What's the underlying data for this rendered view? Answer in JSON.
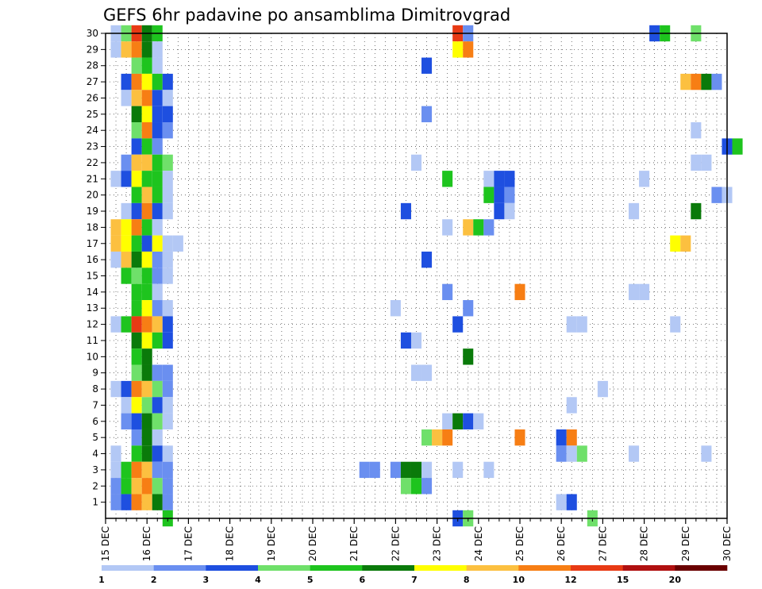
{
  "chart_data": {
    "type": "heatmap",
    "title": "GEFS 6hr padavine po ansamblima Dimitrovgrad",
    "xlabel": "",
    "ylabel": "",
    "x_tick_labels": [
      "15 DEC",
      "16 DEC",
      "17 DEC",
      "18 DEC",
      "19 DEC",
      "20 DEC",
      "21 DEC",
      "22 DEC",
      "23 DEC",
      "24 DEC",
      "25 DEC",
      "26 DEC",
      "27 DEC",
      "28 DEC",
      "29 DEC",
      "30 DEC"
    ],
    "x_range_days": [
      15,
      30
    ],
    "y_tick_labels": [
      "1",
      "2",
      "3",
      "4",
      "5",
      "6",
      "7",
      "8",
      "9",
      "10",
      "11",
      "12",
      "13",
      "14",
      "15",
      "16",
      "17",
      "18",
      "19",
      "20",
      "21",
      "22",
      "23",
      "24",
      "25",
      "26",
      "27",
      "28",
      "29",
      "30"
    ],
    "y_range": [
      0,
      30
    ],
    "grid": "dotted",
    "colorbar": {
      "labels": [
        "1",
        "2",
        "3",
        "4",
        "5",
        "6",
        "7",
        "8",
        "10",
        "12",
        "15",
        "20"
      ],
      "colors": [
        "#b3c8f5",
        "#6a8ff0",
        "#1e4fe0",
        "#6fe06a",
        "#1ec41e",
        "#0a7a0a",
        "#ffff00",
        "#fcc040",
        "#f77e14",
        "#e83a14",
        "#b01010",
        "#6a0000"
      ]
    },
    "cells": [
      [
        30,
        15.25,
        0
      ],
      [
        30,
        15.5,
        3
      ],
      [
        30,
        15.75,
        9
      ],
      [
        30,
        16.0,
        5
      ],
      [
        30,
        16.25,
        4
      ],
      [
        30,
        23.5,
        9
      ],
      [
        30,
        23.75,
        1
      ],
      [
        30,
        28.25,
        2
      ],
      [
        30,
        28.5,
        4
      ],
      [
        30,
        29.25,
        3
      ],
      [
        29,
        15.25,
        0
      ],
      [
        29,
        15.5,
        7
      ],
      [
        29,
        15.75,
        8
      ],
      [
        29,
        16.0,
        5
      ],
      [
        29,
        16.25,
        0
      ],
      [
        29,
        23.5,
        6
      ],
      [
        29,
        23.75,
        8
      ],
      [
        28,
        15.75,
        3
      ],
      [
        28,
        16.0,
        4
      ],
      [
        28,
        16.25,
        0
      ],
      [
        28,
        22.75,
        2
      ],
      [
        27,
        15.5,
        2
      ],
      [
        27,
        15.75,
        8
      ],
      [
        27,
        16.0,
        6
      ],
      [
        27,
        16.25,
        4
      ],
      [
        27,
        16.5,
        2
      ],
      [
        27,
        29.0,
        7
      ],
      [
        27,
        29.25,
        8
      ],
      [
        27,
        29.5,
        5
      ],
      [
        27,
        29.75,
        1
      ],
      [
        26,
        15.5,
        0
      ],
      [
        26,
        15.75,
        7
      ],
      [
        26,
        16.0,
        8
      ],
      [
        26,
        16.25,
        2
      ],
      [
        26,
        16.5,
        0
      ],
      [
        25,
        15.75,
        5
      ],
      [
        25,
        16.0,
        6
      ],
      [
        25,
        16.25,
        2
      ],
      [
        25,
        16.5,
        2
      ],
      [
        25,
        22.75,
        1
      ],
      [
        24,
        15.75,
        3
      ],
      [
        24,
        16.0,
        8
      ],
      [
        24,
        16.25,
        2
      ],
      [
        24,
        16.5,
        1
      ],
      [
        24,
        29.25,
        0
      ],
      [
        23,
        15.75,
        2
      ],
      [
        23,
        16.0,
        4
      ],
      [
        23,
        16.25,
        1
      ],
      [
        23,
        30.0,
        2
      ],
      [
        23,
        30.25,
        4
      ],
      [
        22,
        15.5,
        1
      ],
      [
        22,
        15.75,
        7
      ],
      [
        22,
        16.0,
        7
      ],
      [
        22,
        16.25,
        4
      ],
      [
        22,
        16.5,
        3
      ],
      [
        22,
        22.5,
        0
      ],
      [
        22,
        29.25,
        0
      ],
      [
        22,
        29.5,
        0
      ],
      [
        21,
        15.25,
        0
      ],
      [
        21,
        15.5,
        2
      ],
      [
        21,
        15.75,
        6
      ],
      [
        21,
        16.0,
        4
      ],
      [
        21,
        16.25,
        4
      ],
      [
        21,
        16.5,
        0
      ],
      [
        21,
        23.25,
        4
      ],
      [
        21,
        24.25,
        0
      ],
      [
        21,
        24.5,
        2
      ],
      [
        21,
        24.75,
        2
      ],
      [
        21,
        28.0,
        0
      ],
      [
        20,
        15.75,
        4
      ],
      [
        20,
        16.0,
        7
      ],
      [
        20,
        16.25,
        4
      ],
      [
        20,
        16.5,
        0
      ],
      [
        20,
        24.25,
        4
      ],
      [
        20,
        24.5,
        2
      ],
      [
        20,
        24.75,
        1
      ],
      [
        20,
        29.75,
        1
      ],
      [
        20,
        30.0,
        0
      ],
      [
        19,
        15.5,
        0
      ],
      [
        19,
        15.75,
        2
      ],
      [
        19,
        16.0,
        8
      ],
      [
        19,
        16.25,
        2
      ],
      [
        19,
        16.5,
        0
      ],
      [
        19,
        22.25,
        2
      ],
      [
        19,
        24.5,
        2
      ],
      [
        19,
        24.75,
        0
      ],
      [
        19,
        27.75,
        0
      ],
      [
        19,
        29.25,
        5
      ],
      [
        18,
        15.25,
        7
      ],
      [
        18,
        15.5,
        6
      ],
      [
        18,
        15.75,
        8
      ],
      [
        18,
        16.0,
        4
      ],
      [
        18,
        16.25,
        0
      ],
      [
        18,
        23.25,
        0
      ],
      [
        18,
        23.75,
        7
      ],
      [
        18,
        24.0,
        4
      ],
      [
        18,
        24.25,
        1
      ],
      [
        17,
        15.25,
        7
      ],
      [
        17,
        15.5,
        6
      ],
      [
        17,
        15.75,
        4
      ],
      [
        17,
        16.0,
        2
      ],
      [
        17,
        16.25,
        6
      ],
      [
        17,
        16.5,
        0
      ],
      [
        17,
        16.75,
        0
      ],
      [
        17,
        28.75,
        6
      ],
      [
        17,
        29.0,
        7
      ],
      [
        16,
        15.25,
        0
      ],
      [
        16,
        15.5,
        7
      ],
      [
        16,
        15.75,
        5
      ],
      [
        16,
        16.0,
        6
      ],
      [
        16,
        16.25,
        1
      ],
      [
        16,
        16.5,
        0
      ],
      [
        16,
        22.75,
        2
      ],
      [
        15,
        15.5,
        4
      ],
      [
        15,
        15.75,
        3
      ],
      [
        15,
        16.0,
        4
      ],
      [
        15,
        16.25,
        1
      ],
      [
        15,
        16.5,
        0
      ],
      [
        14,
        15.75,
        4
      ],
      [
        14,
        16.0,
        4
      ],
      [
        14,
        16.25,
        0
      ],
      [
        14,
        23.25,
        1
      ],
      [
        14,
        25.0,
        8
      ],
      [
        14,
        27.75,
        0
      ],
      [
        14,
        28.0,
        0
      ],
      [
        13,
        15.75,
        4
      ],
      [
        13,
        16.0,
        6
      ],
      [
        13,
        16.25,
        1
      ],
      [
        13,
        16.5,
        0
      ],
      [
        13,
        22.0,
        0
      ],
      [
        13,
        23.75,
        1
      ],
      [
        12,
        15.25,
        0
      ],
      [
        12,
        15.5,
        4
      ],
      [
        12,
        15.75,
        9
      ],
      [
        12,
        16.0,
        8
      ],
      [
        12,
        16.25,
        7
      ],
      [
        12,
        16.5,
        2
      ],
      [
        12,
        23.5,
        2
      ],
      [
        12,
        26.25,
        0
      ],
      [
        12,
        26.5,
        0
      ],
      [
        12,
        28.75,
        0
      ],
      [
        11,
        15.75,
        5
      ],
      [
        11,
        16.0,
        6
      ],
      [
        11,
        16.25,
        4
      ],
      [
        11,
        16.5,
        2
      ],
      [
        11,
        22.25,
        2
      ],
      [
        11,
        22.5,
        0
      ],
      [
        10,
        15.75,
        4
      ],
      [
        10,
        16.0,
        5
      ],
      [
        10,
        23.75,
        5
      ],
      [
        9,
        15.75,
        3
      ],
      [
        9,
        16.0,
        5
      ],
      [
        9,
        16.25,
        1
      ],
      [
        9,
        16.5,
        1
      ],
      [
        9,
        22.5,
        0
      ],
      [
        9,
        22.75,
        0
      ],
      [
        8,
        15.25,
        0
      ],
      [
        8,
        15.5,
        2
      ],
      [
        8,
        15.75,
        8
      ],
      [
        8,
        16.0,
        7
      ],
      [
        8,
        16.25,
        3
      ],
      [
        8,
        16.5,
        1
      ],
      [
        8,
        27.0,
        0
      ],
      [
        7,
        15.5,
        0
      ],
      [
        7,
        15.75,
        6
      ],
      [
        7,
        16.0,
        3
      ],
      [
        7,
        16.25,
        2
      ],
      [
        7,
        16.5,
        0
      ],
      [
        7,
        26.25,
        0
      ],
      [
        6,
        15.5,
        1
      ],
      [
        6,
        15.75,
        2
      ],
      [
        6,
        16.0,
        5
      ],
      [
        6,
        16.25,
        3
      ],
      [
        6,
        16.5,
        0
      ],
      [
        6,
        23.25,
        0
      ],
      [
        6,
        23.5,
        5
      ],
      [
        6,
        23.75,
        2
      ],
      [
        6,
        24.0,
        0
      ],
      [
        5,
        15.75,
        1
      ],
      [
        5,
        16.0,
        5
      ],
      [
        5,
        16.25,
        0
      ],
      [
        5,
        22.75,
        3
      ],
      [
        5,
        23.0,
        7
      ],
      [
        5,
        23.25,
        8
      ],
      [
        5,
        25.0,
        8
      ],
      [
        5,
        26.0,
        2
      ],
      [
        5,
        26.25,
        8
      ],
      [
        4,
        15.25,
        0
      ],
      [
        4,
        15.75,
        4
      ],
      [
        4,
        16.0,
        5
      ],
      [
        4,
        16.25,
        2
      ],
      [
        4,
        16.5,
        0
      ],
      [
        4,
        26.0,
        1
      ],
      [
        4,
        26.25,
        0
      ],
      [
        4,
        26.5,
        3
      ],
      [
        4,
        27.75,
        0
      ],
      [
        4,
        29.5,
        0
      ],
      [
        3,
        15.25,
        0
      ],
      [
        3,
        15.5,
        4
      ],
      [
        3,
        15.75,
        8
      ],
      [
        3,
        16.0,
        7
      ],
      [
        3,
        16.25,
        1
      ],
      [
        3,
        16.5,
        1
      ],
      [
        3,
        21.25,
        1
      ],
      [
        3,
        21.5,
        1
      ],
      [
        3,
        22.0,
        1
      ],
      [
        3,
        22.25,
        5
      ],
      [
        3,
        22.5,
        5
      ],
      [
        3,
        22.75,
        0
      ],
      [
        3,
        23.5,
        0
      ],
      [
        3,
        24.25,
        0
      ],
      [
        2,
        15.25,
        1
      ],
      [
        2,
        15.5,
        4
      ],
      [
        2,
        15.75,
        7
      ],
      [
        2,
        16.0,
        8
      ],
      [
        2,
        16.25,
        3
      ],
      [
        2,
        16.5,
        1
      ],
      [
        2,
        22.25,
        3
      ],
      [
        2,
        22.5,
        4
      ],
      [
        2,
        22.75,
        1
      ],
      [
        1,
        15.25,
        1
      ],
      [
        1,
        15.5,
        2
      ],
      [
        1,
        15.75,
        8
      ],
      [
        1,
        16.0,
        7
      ],
      [
        1,
        16.25,
        5
      ],
      [
        1,
        16.5,
        1
      ],
      [
        1,
        26.0,
        0
      ],
      [
        1,
        26.25,
        2
      ],
      [
        0,
        23.5,
        2
      ],
      [
        0,
        23.75,
        3
      ],
      [
        0,
        26.75,
        3
      ],
      [
        0,
        16.5,
        4
      ]
    ]
  }
}
